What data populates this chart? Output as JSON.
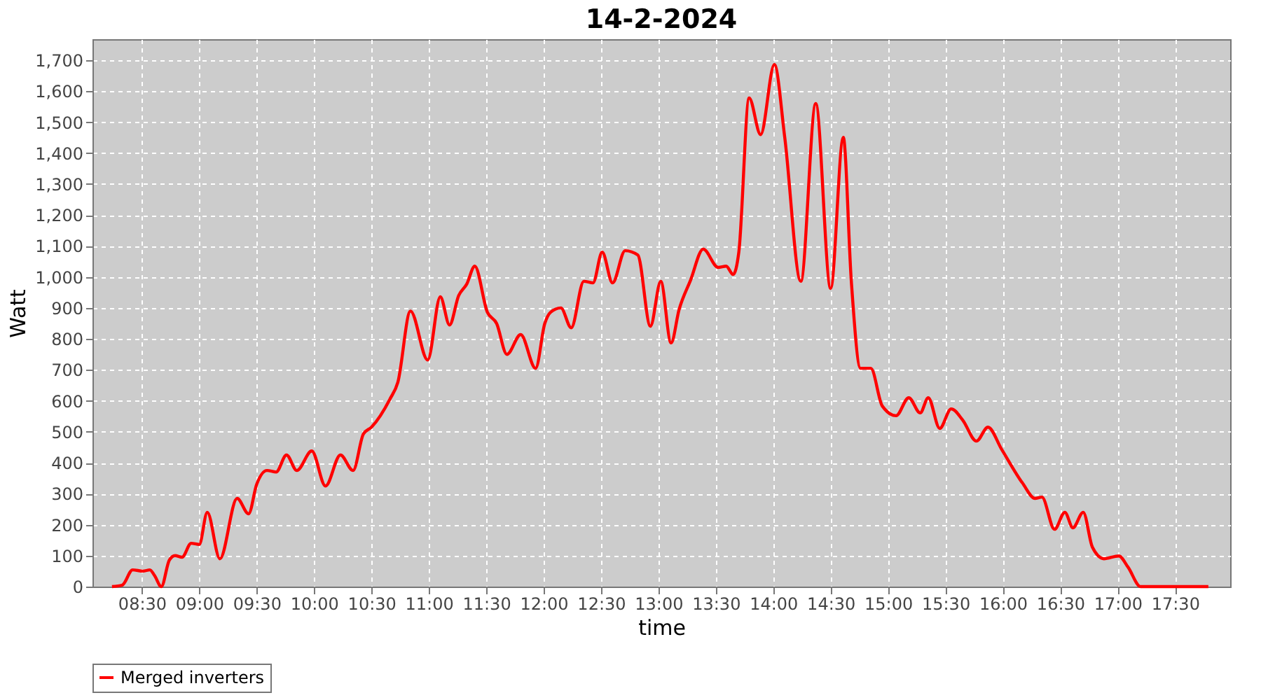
{
  "chart_data": {
    "type": "line",
    "title": "14-2-2024",
    "xlabel": "time",
    "ylabel": "Watt",
    "xlim": [
      8.07,
      17.98
    ],
    "ylim": [
      0,
      1768
    ],
    "xticks": [
      {
        "value": 8.5,
        "label": "08:30"
      },
      {
        "value": 9,
        "label": "09:00"
      },
      {
        "value": 9.5,
        "label": "09:30"
      },
      {
        "value": 10,
        "label": "10:00"
      },
      {
        "value": 10.5,
        "label": "10:30"
      },
      {
        "value": 11,
        "label": "11:00"
      },
      {
        "value": 11.5,
        "label": "11:30"
      },
      {
        "value": 12,
        "label": "12:00"
      },
      {
        "value": 12.5,
        "label": "12:30"
      },
      {
        "value": 13,
        "label": "13:00"
      },
      {
        "value": 13.5,
        "label": "13:30"
      },
      {
        "value": 14,
        "label": "14:00"
      },
      {
        "value": 14.5,
        "label": "14:30"
      },
      {
        "value": 15,
        "label": "15:00"
      },
      {
        "value": 15.5,
        "label": "15:30"
      },
      {
        "value": 16,
        "label": "16:00"
      },
      {
        "value": 16.5,
        "label": "16:30"
      },
      {
        "value": 17,
        "label": "17:00"
      },
      {
        "value": 17.5,
        "label": "17:30"
      }
    ],
    "yticks": [
      0,
      100,
      200,
      300,
      400,
      500,
      600,
      700,
      800,
      900,
      {
        "value": 1000,
        "label": "1,000"
      },
      {
        "value": 1100,
        "label": "1,100"
      },
      {
        "value": 1200,
        "label": "1,200"
      },
      {
        "value": 1300,
        "label": "1,300"
      },
      {
        "value": 1400,
        "label": "1,400"
      },
      {
        "value": 1500,
        "label": "1,500"
      },
      {
        "value": 1600,
        "label": "1,600"
      },
      {
        "value": 1700,
        "label": "1,700"
      }
    ],
    "grid": true,
    "legend": "bottom",
    "line_style": "solid",
    "x": [
      8.24,
      8.33,
      8.42,
      8.51,
      8.57,
      8.61,
      8.67,
      8.74,
      8.79,
      8.85,
      8.93,
      9.0,
      9.07,
      9.18,
      9.33,
      9.43,
      9.5,
      9.59,
      9.67,
      9.76,
      9.85,
      9.98,
      10.1,
      10.23,
      10.34,
      10.43,
      10.5,
      10.66,
      10.73,
      10.84,
      10.99,
      11.1,
      11.18,
      11.26,
      11.33,
      11.4,
      11.51,
      11.59,
      11.68,
      11.8,
      11.93,
      12.01,
      12.06,
      12.15,
      12.24,
      12.35,
      12.43,
      12.51,
      12.6,
      12.71,
      12.82,
      12.93,
      13.02,
      13.11,
      13.18,
      13.28,
      13.39,
      13.52,
      13.59,
      13.65,
      13.7,
      13.79,
      13.89,
      14.01,
      14.1,
      14.24,
      14.37,
      14.5,
      14.61,
      14.68,
      14.76,
      14.85,
      14.95,
      15.07,
      15.18,
      15.28,
      15.35,
      15.45,
      15.55,
      15.65,
      15.77,
      15.87,
      15.99,
      16.17,
      16.28,
      16.34,
      16.45,
      16.54,
      16.61,
      16.7,
      16.78,
      16.88,
      17.01,
      17.09,
      17.2,
      17.79
    ],
    "series": [
      {
        "name": "Merged inverters",
        "color": "#ff0000",
        "values": [
          0,
          5,
          54,
          50,
          54,
          36,
          0,
          86,
          100,
          95,
          140,
          136,
          240,
          90,
          285,
          235,
          330,
          375,
          370,
          425,
          375,
          438,
          325,
          425,
          375,
          493,
          515,
          605,
          660,
          890,
          732,
          936,
          845,
          940,
          977,
          1035,
          886,
          850,
          750,
          814,
          705,
          850,
          886,
          900,
          836,
          986,
          981,
          1080,
          981,
          1085,
          1071,
          841,
          986,
          787,
          895,
          990,
          1090,
          1031,
          1035,
          1008,
          1080,
          1578,
          1460,
          1686,
          1451,
          986,
          1560,
          963,
          1451,
          986,
          705,
          705,
          583,
          552,
          610,
          561,
          610,
          511,
          574,
          538,
          470,
          515,
          443,
          335,
          285,
          289,
          185,
          240,
          190,
          240,
          127,
          90,
          99,
          63,
          0,
          0
        ]
      }
    ]
  }
}
